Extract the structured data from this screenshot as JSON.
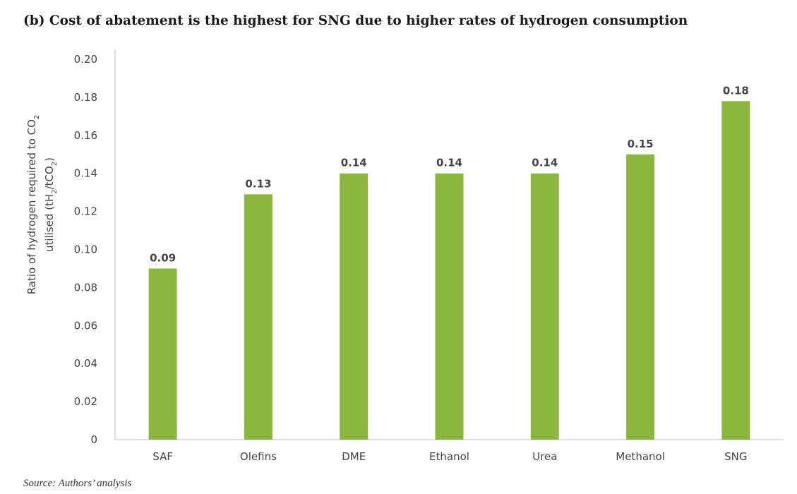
{
  "title": "(b) Cost of abatement is the highest for SNG due to higher rates of hydrogen consumption",
  "source": "Source: Authors’ analysis",
  "colors": {
    "bar": "#8cb73f",
    "axis": "#bfbfbf",
    "text": "#444444"
  },
  "chart_data": {
    "type": "bar",
    "categories": [
      "SAF",
      "Olefins",
      "DME",
      "Ethanol",
      "Urea",
      "Methanol",
      "SNG"
    ],
    "values": [
      0.09,
      0.13,
      0.14,
      0.14,
      0.14,
      0.15,
      0.18
    ],
    "bar_values": [
      0.09,
      0.129,
      0.14,
      0.14,
      0.14,
      0.15,
      0.178
    ],
    "data_labels": [
      "0.09",
      "0.13",
      "0.14",
      "0.14",
      "0.14",
      "0.15",
      "0.18"
    ],
    "yticks": [
      "0",
      "0.02",
      "0.04",
      "0.06",
      "0.08",
      "0.10",
      "0.12",
      "0.14",
      "0.16",
      "0.18",
      "0.20"
    ],
    "ylabel_line1": "Ratio of hydrogen required to CO",
    "ylabel_line1_sub": "2",
    "ylabel_line2_a": "utilised (tH",
    "ylabel_line2_sub1": "2",
    "ylabel_line2_b": "/tCO",
    "ylabel_line2_sub2": "2",
    "ylabel_line2_c": ")",
    "xlabel": "",
    "ylim": [
      0,
      0.2
    ],
    "grid": false,
    "legend": "none"
  }
}
